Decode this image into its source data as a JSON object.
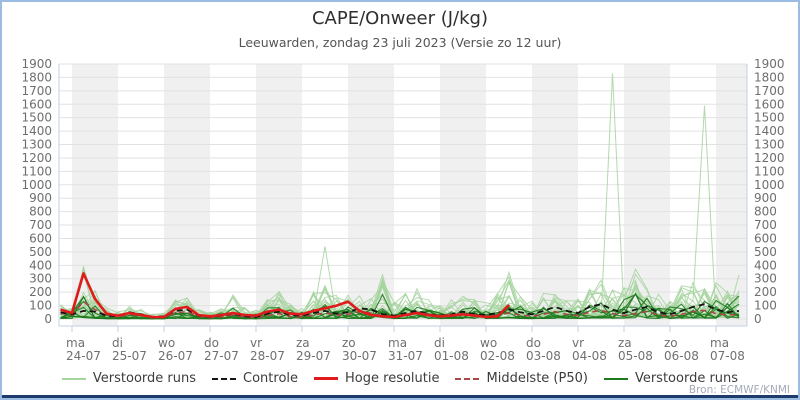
{
  "header": {
    "title": "CAPE/Onweer (J/kg)",
    "subtitle": "Leeuwarden, zondag 23 juli 2023 (Versie zo 12 uur)"
  },
  "source_credit": "Bron: ECMWF/KNMI",
  "legend": [
    {
      "label": "Verstoorde runs",
      "color": "#a6d49f",
      "dash": "solid",
      "thickness": 2
    },
    {
      "label": "Controle",
      "color": "#151515",
      "dash": "dashed",
      "thickness": 2
    },
    {
      "label": "Hoge resolutie",
      "color": "#e11b1b",
      "dash": "solid",
      "thickness": 3
    },
    {
      "label": "Middelste (P50)",
      "color": "#a84848",
      "dash": "dashed",
      "thickness": 2
    },
    {
      "label": "Verstoorde runs",
      "color": "#1d7a1d",
      "dash": "solid",
      "thickness": 2
    }
  ],
  "chart_data": {
    "type": "line",
    "title": "CAPE/Onweer (J/kg)",
    "subtitle": "Leeuwarden, zondag 23 juli 2023 (Versie zo 12 uur)",
    "ylabel": "J/kg",
    "ylim": [
      0,
      1900
    ],
    "ytick_step": 100,
    "grid": true,
    "legend_position": "bottom",
    "x_days": [
      {
        "day": "ma",
        "date": "24-07"
      },
      {
        "day": "di",
        "date": "25-07"
      },
      {
        "day": "wo",
        "date": "26-07"
      },
      {
        "day": "do",
        "date": "27-07"
      },
      {
        "day": "vr",
        "date": "28-07"
      },
      {
        "day": "za",
        "date": "29-07"
      },
      {
        "day": "zo",
        "date": "30-07"
      },
      {
        "day": "ma",
        "date": "31-07"
      },
      {
        "day": "di",
        "date": "01-08"
      },
      {
        "day": "wo",
        "date": "02-08"
      },
      {
        "day": "do",
        "date": "03-08"
      },
      {
        "day": "vr",
        "date": "04-08"
      },
      {
        "day": "za",
        "date": "05-08"
      },
      {
        "day": "zo",
        "date": "06-08"
      },
      {
        "day": "ma",
        "date": "07-08"
      }
    ],
    "time_axis": {
      "t_start_days": -0.25,
      "t_step_days": 0.25,
      "n_points": 60,
      "note_t0": "00:00 of 24-07, run start zo 23-07 12 uur"
    },
    "series": {
      "hoge_resolutie": {
        "style": "red solid thick",
        "ends_at_day": 9.5,
        "values": [
          70,
          45,
          340,
          150,
          40,
          25,
          45,
          30,
          15,
          15,
          75,
          90,
          30,
          20,
          30,
          45,
          30,
          25,
          55,
          70,
          40,
          35,
          60,
          80,
          100,
          130,
          60,
          30,
          20,
          15,
          30,
          45,
          30,
          20,
          25,
          35,
          25,
          15,
          20,
          105
        ]
      },
      "controle": {
        "style": "black dashed",
        "values": [
          50,
          35,
          60,
          55,
          25,
          20,
          50,
          35,
          15,
          20,
          60,
          70,
          25,
          15,
          25,
          40,
          20,
          15,
          40,
          55,
          30,
          25,
          45,
          60,
          40,
          50,
          80,
          70,
          35,
          25,
          45,
          60,
          35,
          25,
          35,
          55,
          35,
          30,
          45,
          70,
          50,
          35,
          60,
          90,
          60,
          45,
          90,
          110,
          70,
          45,
          70,
          90,
          50,
          35,
          60,
          90,
          110,
          70,
          50,
          60
        ]
      },
      "middelste_p50": {
        "style": "dark red dashed",
        "values": [
          45,
          30,
          130,
          70,
          25,
          15,
          35,
          25,
          10,
          12,
          45,
          55,
          20,
          10,
          18,
          30,
          15,
          10,
          25,
          40,
          20,
          15,
          30,
          45,
          30,
          35,
          55,
          45,
          22,
          15,
          28,
          40,
          22,
          15,
          22,
          35,
          22,
          18,
          28,
          45,
          30,
          20,
          35,
          55,
          35,
          25,
          50,
          65,
          40,
          25,
          40,
          55,
          30,
          20,
          35,
          55,
          65,
          40,
          30,
          35
        ]
      },
      "ensemble_max_envelope": {
        "style": "upper bound of ~50 perturbed member runs (green)",
        "values": [
          120,
          100,
          460,
          250,
          90,
          60,
          110,
          80,
          40,
          50,
          150,
          170,
          80,
          60,
          100,
          190,
          90,
          70,
          160,
          250,
          130,
          100,
          220,
          540,
          200,
          230,
          180,
          160,
          360,
          150,
          200,
          250,
          160,
          120,
          180,
          230,
          160,
          130,
          200,
          370,
          180,
          140,
          200,
          260,
          180,
          160,
          260,
          300,
          1830,
          300,
          430,
          300,
          200,
          180,
          260,
          300,
          1590,
          300,
          220,
          370
        ]
      }
    },
    "outlier_peaks": [
      {
        "t_days": 5.5,
        "value": 540,
        "date": "29-07"
      },
      {
        "t_days": 11.75,
        "value": 1830,
        "date": "04-08"
      },
      {
        "t_days": 13.75,
        "value": 1590,
        "date": "06-08"
      }
    ],
    "n_members_light": 26,
    "n_members_dark": 8
  },
  "colors": {
    "member_light": "#a6d49f",
    "member_dark": "#1d7a1d",
    "hres": "#e11b1b",
    "p50": "#a84848",
    "control": "#151515",
    "band_gray": "#f0f0f0",
    "gridline": "#e2e2e2",
    "axis_line": "#c3cfe3",
    "tick_label": "#6e6e6e",
    "x_label": "#707070"
  }
}
